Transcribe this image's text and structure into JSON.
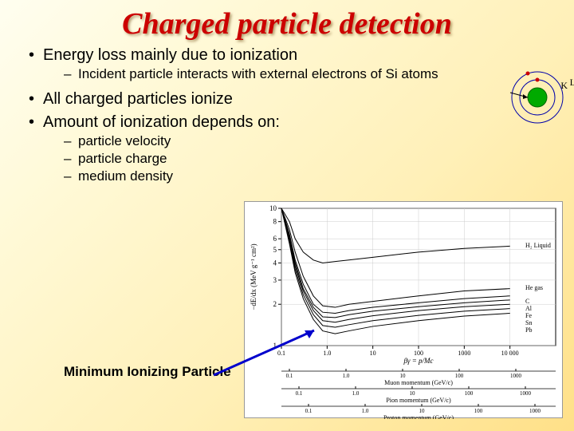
{
  "title": "Charged particle detection",
  "bullets_main": [
    "Energy loss mainly due to ionization",
    "All charged particles ionize",
    "Amount of ionization depends on:"
  ],
  "sub1": "Incident particle interacts with external electrons of Si atoms",
  "subs2": [
    "particle velocity",
    "particle charge",
    "medium density"
  ],
  "mip_label": "Minimum Ionizing Particle",
  "atom": {
    "K": "K",
    "L": "L"
  },
  "chart": {
    "type": "line",
    "ylabel": "−dE/dx (MeV g⁻¹ cm²)",
    "xlabel_top": "βγ = p/Mc",
    "axis_labels": [
      "Muon momentum (GeV/c)",
      "Pion momentum (GeV/c)",
      "Proton momentum (GeV/c)"
    ],
    "ylim": [
      1,
      10
    ],
    "yticks": [
      1,
      2,
      3,
      4,
      5,
      6,
      8,
      10
    ],
    "xlim_top": [
      0.1,
      100000
    ],
    "xticks_top": [
      "0.1",
      "1.0",
      "10",
      "100",
      "1000",
      "10 000"
    ],
    "series_labels": [
      "H₂ Liquid",
      "He gas",
      "C",
      "Al",
      "Fe",
      "Sn",
      "Pb"
    ],
    "series_colors": [
      "#000000",
      "#000000",
      "#000000",
      "#000000",
      "#000000",
      "#000000",
      "#000000"
    ],
    "line_width": 1,
    "grid_color": "#cccccc",
    "background_color": "#ffffff",
    "arrow_color": "#0000cc",
    "momentum_ticks": [
      "0.1",
      "1.0",
      "10",
      "100",
      "1000"
    ],
    "curve_x": [
      0.1,
      0.15,
      0.2,
      0.3,
      0.5,
      0.8,
      1.5,
      3,
      10,
      100,
      1000,
      10000
    ],
    "curves_y": {
      "H2": [
        10,
        8,
        6,
        4.8,
        4.2,
        4.0,
        4.1,
        4.2,
        4.4,
        4.8,
        5.1,
        5.3
      ],
      "He": [
        10,
        7,
        4.8,
        3.2,
        2.3,
        1.95,
        1.9,
        2.0,
        2.1,
        2.3,
        2.5,
        2.6
      ],
      "C": [
        10,
        6.5,
        4.2,
        2.8,
        2.0,
        1.75,
        1.72,
        1.8,
        1.9,
        2.05,
        2.2,
        2.3
      ],
      "Al": [
        10,
        6.2,
        4.0,
        2.6,
        1.9,
        1.62,
        1.6,
        1.68,
        1.78,
        1.92,
        2.05,
        2.15
      ],
      "Fe": [
        10,
        6.0,
        3.8,
        2.5,
        1.8,
        1.52,
        1.48,
        1.55,
        1.65,
        1.8,
        1.92,
        2.0
      ],
      "Sn": [
        10,
        5.7,
        3.6,
        2.35,
        1.68,
        1.4,
        1.36,
        1.42,
        1.52,
        1.66,
        1.78,
        1.86
      ],
      "Pb": [
        10,
        5.5,
        3.4,
        2.2,
        1.55,
        1.28,
        1.22,
        1.28,
        1.38,
        1.52,
        1.64,
        1.72
      ]
    }
  },
  "colors": {
    "title": "#cc0000",
    "arrow": "#0000cc",
    "atom_fill": "#00aa00",
    "electron": "#cc0000",
    "shell": "#0000aa"
  }
}
